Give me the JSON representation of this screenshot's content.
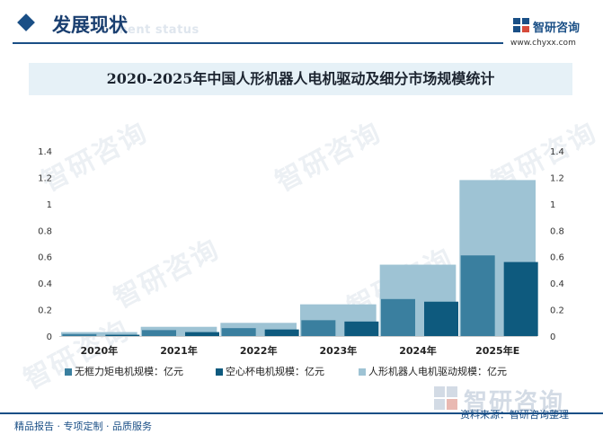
{
  "header": {
    "title": "发展现状",
    "subtitle_en": "ment status",
    "brand": "智研咨询",
    "site": "www.chyxx.com"
  },
  "watermark_text": "智研咨询",
  "chart_data": {
    "type": "bar",
    "title": "2020-2025年中国人形机器人电机驱动及细分市场规模统计",
    "categories": [
      "2020年",
      "2021年",
      "2022年",
      "2023年",
      "2024年",
      "2025年E"
    ],
    "series": [
      {
        "name": "无框力矩电机规模：亿元",
        "values": [
          0.015,
          0.045,
          0.06,
          0.12,
          0.28,
          0.61
        ],
        "color": "#3a7f9f"
      },
      {
        "name": "空心杯电机规模：亿元",
        "values": [
          0.01,
          0.03,
          0.05,
          0.11,
          0.26,
          0.56
        ],
        "color": "#0e5a7e"
      },
      {
        "name": "人形机器人电机驱动规模：亿元",
        "values": [
          0.03,
          0.07,
          0.1,
          0.24,
          0.54,
          1.18
        ],
        "color": "#9ec3d4"
      }
    ],
    "ylim": [
      0,
      1.4
    ],
    "yticks": [
      "0",
      "0.2",
      "0.4",
      "0.6",
      "0.8",
      "1",
      "1.2",
      "1.4"
    ],
    "ytick_values": [
      0,
      0.2,
      0.4,
      0.6,
      0.8,
      1,
      1.2,
      1.4
    ],
    "legend_position": "bottom"
  },
  "footer": {
    "left": "精品报告 · 专项定制 · 品质服务",
    "source": "资料来源：智研咨询整理",
    "brand": "智研咨询"
  }
}
